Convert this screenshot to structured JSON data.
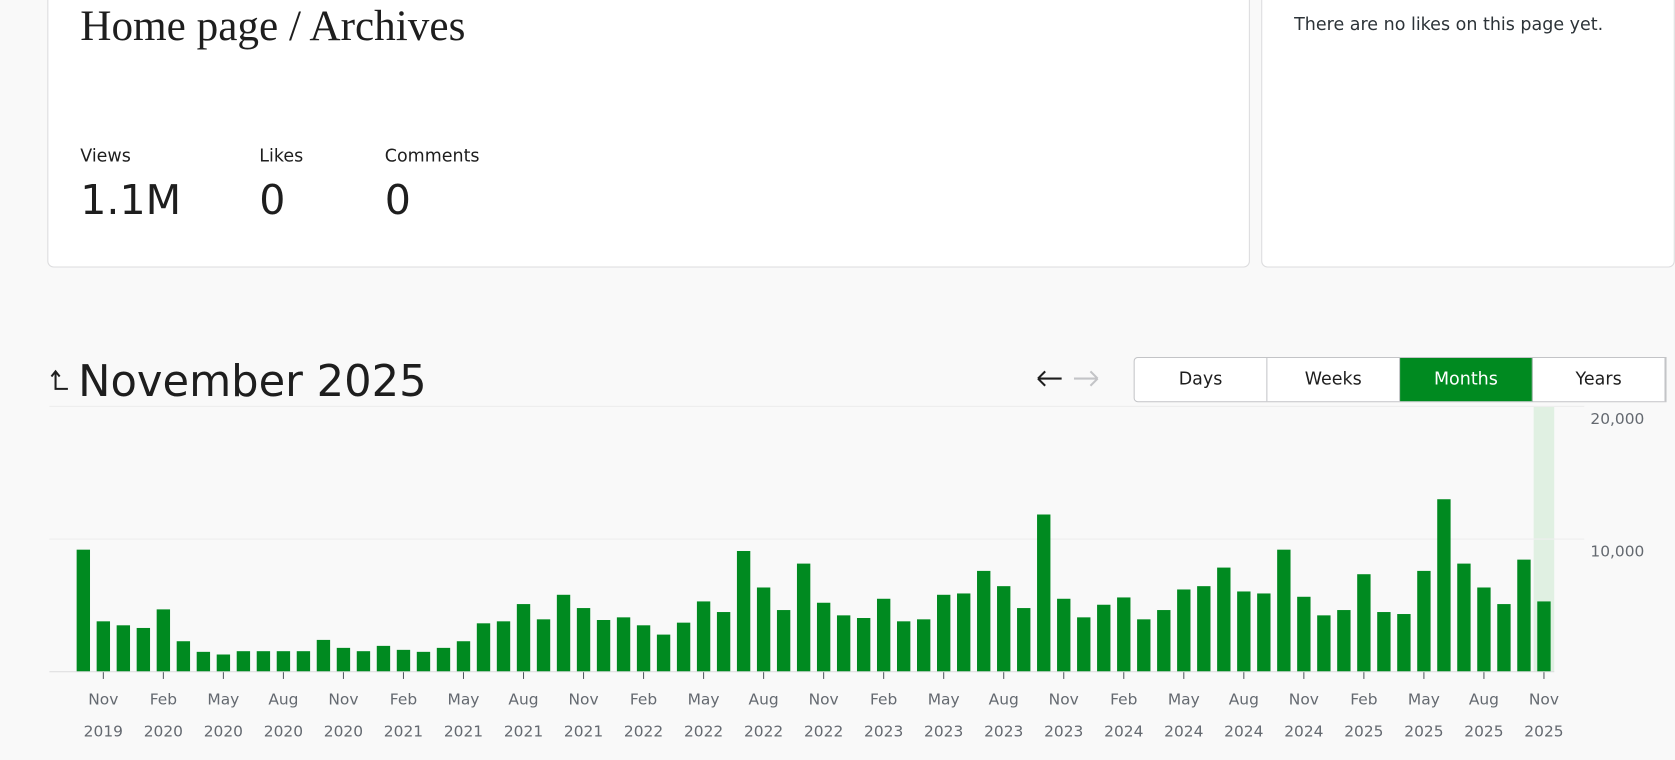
{
  "header": {
    "title": "Home page / Archives"
  },
  "stats": [
    {
      "label": "Views",
      "value": "1.1M"
    },
    {
      "label": "Likes",
      "value": "0"
    },
    {
      "label": "Comments",
      "value": "0"
    }
  ],
  "likes_panel": {
    "message": "There are no likes on this page yet."
  },
  "chart_header": {
    "period": "November 2025",
    "ranges": [
      "Days",
      "Weeks",
      "Months",
      "Years"
    ],
    "selected_index": 2
  },
  "chart_data": {
    "type": "bar",
    "categories": [
      null,
      "Nov\n2019",
      null,
      null,
      "Feb\n2020",
      null,
      null,
      "May\n2020",
      null,
      null,
      "Aug\n2020",
      null,
      null,
      "Nov\n2020",
      null,
      null,
      "Feb\n2021",
      null,
      null,
      "May\n2021",
      null,
      null,
      "Aug\n2021",
      null,
      null,
      "Nov\n2021",
      null,
      null,
      "Feb\n2022",
      null,
      null,
      "May\n2022",
      null,
      null,
      "Aug\n2022",
      null,
      null,
      "Nov\n2022",
      null,
      null,
      "Feb\n2023",
      null,
      null,
      "May\n2023",
      null,
      null,
      "Aug\n2023",
      null,
      null,
      "Nov\n2023",
      null,
      null,
      "Feb\n2024",
      null,
      null,
      "May\n2024",
      null,
      null,
      "Aug\n2024",
      null,
      null,
      "Nov\n2024",
      null,
      null,
      "Feb\n2025",
      null,
      null,
      "May\n2025",
      null,
      null,
      "Aug\n2025",
      null,
      null,
      "Nov\n2025"
    ],
    "values": [
      9200,
      3800,
      3500,
      3300,
      4700,
      2300,
      1500,
      1300,
      1550,
      1550,
      1550,
      1550,
      2400,
      1800,
      1550,
      1950,
      1650,
      1500,
      1800,
      2300,
      3650,
      3800,
      5100,
      3950,
      5800,
      4800,
      3900,
      4100,
      3500,
      2800,
      3700,
      5300,
      4500,
      9100,
      6350,
      4650,
      8150,
      5200,
      4250,
      4050,
      5500,
      3800,
      3950,
      5800,
      5900,
      7600,
      6450,
      4800,
      11850,
      5500,
      4100,
      5050,
      5600,
      3950,
      4650,
      6200,
      6450,
      7850,
      6050,
      5900,
      9200,
      5650,
      4250,
      4650,
      7350,
      4500,
      4350,
      7600,
      13000,
      8150,
      6350,
      5100,
      8450,
      5300
    ],
    "color": "#008a20",
    "ylim": [
      0,
      20000
    ],
    "yticks": [
      {
        "value": 10000,
        "label": "10,000"
      },
      {
        "value": 20000,
        "label": "20,000"
      }
    ],
    "grid": true
  }
}
